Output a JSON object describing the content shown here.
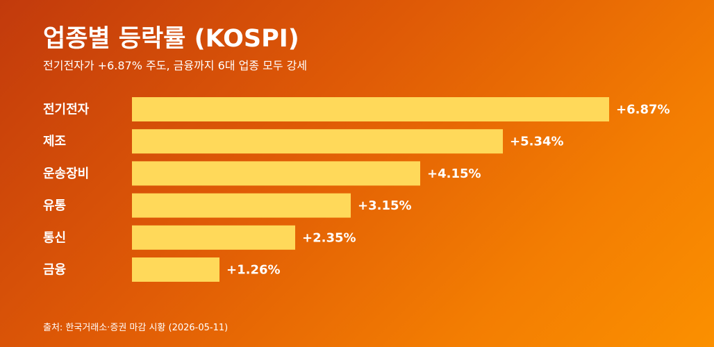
{
  "chart_data": {
    "type": "bar",
    "orientation": "horizontal",
    "title": "업종별 등락률 (KOSPI)",
    "subtitle": "전기전자가 +6.87% 주도, 금융까지 6대 업종 모두 강세",
    "categories": [
      "전기전자",
      "제조",
      "운송장비",
      "유통",
      "통신",
      "금융"
    ],
    "values": [
      6.87,
      5.34,
      4.15,
      3.15,
      2.35,
      1.26
    ],
    "value_labels": [
      "+6.87%",
      "+5.34%",
      "+4.15%",
      "+3.15%",
      "+2.35%",
      "+1.26%"
    ],
    "xlim": [
      0,
      6.87
    ],
    "grid": false,
    "legend": "none",
    "bar_color": "#ffd95a",
    "source": "출처: 한국거래소·증권 마감 시황 (2026-05-11)"
  },
  "colors": {
    "background_start": "#c23a0c",
    "background_end": "#fb9000",
    "bar": "#ffd95a",
    "text": "#ffffff"
  }
}
